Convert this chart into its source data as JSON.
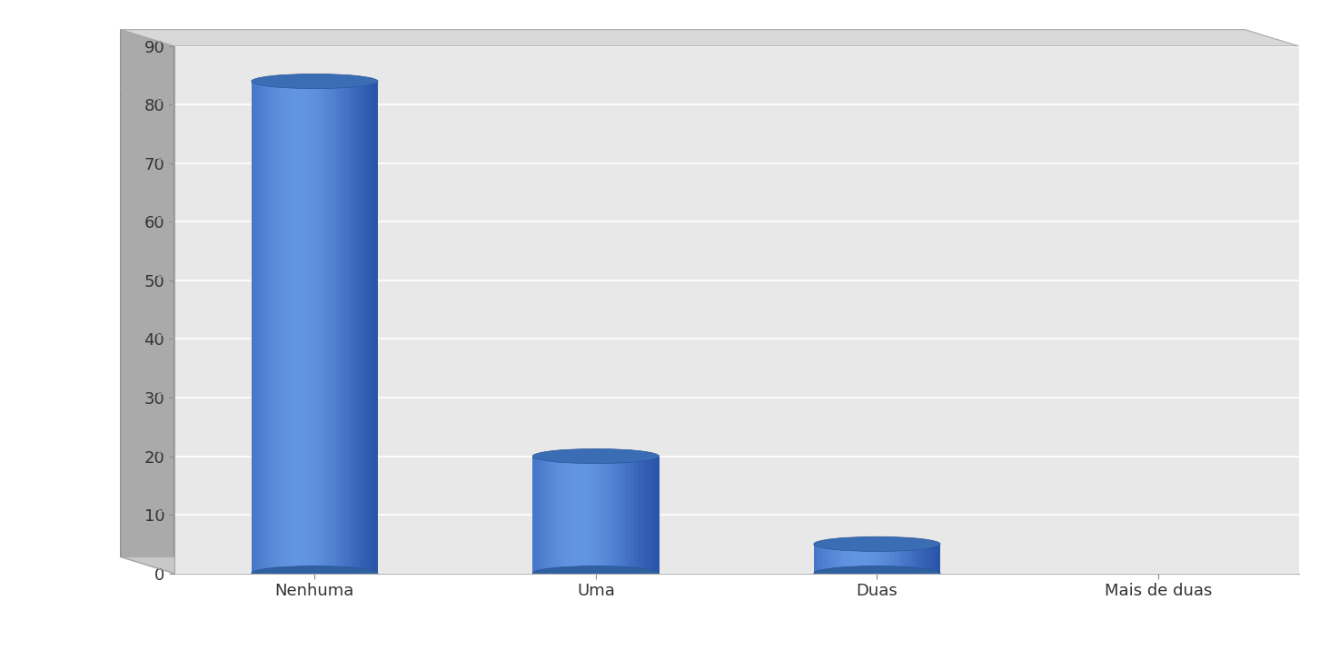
{
  "categories": [
    "Nenhuma",
    "Uma",
    "Duas",
    "Mais de duas"
  ],
  "values": [
    84,
    20,
    5,
    0
  ],
  "bar_color_main": "#4472C4",
  "bar_color_light": "#5B9BD5",
  "bar_color_dark": "#2E5F9E",
  "bar_top_color": "#4A86C8",
  "wall_color": "#E8E8E8",
  "side_wall_color": "#B0B0B0",
  "floor_color": "#D0D0D0",
  "grid_color": "#FFFFFF",
  "background_color": "#FFFFFF",
  "ylim": [
    0,
    90
  ],
  "yticks": [
    0,
    10,
    20,
    30,
    40,
    50,
    60,
    70,
    80,
    90
  ],
  "tick_fontsize": 13,
  "axis_label_fontsize": 13
}
